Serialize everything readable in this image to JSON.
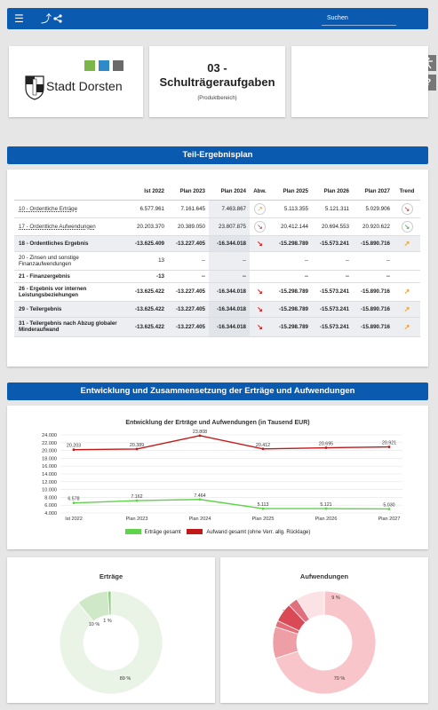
{
  "header": {
    "menu_icon": "hamburger-icon",
    "share_icons": [
      "export-icon",
      "share-icon"
    ],
    "search_placeholder": "Suchen"
  },
  "side_buttons": [
    "accessibility-icon",
    "help-icon"
  ],
  "help_label": "?",
  "logo": {
    "text": "Stadt Dorsten",
    "colors": [
      "#7ab648",
      "#2e8ac8",
      "#6a6a6a"
    ]
  },
  "product": {
    "number": "03 -",
    "title": "Schulträgeraufgaben",
    "subtitle": "(Produktbereich)"
  },
  "section1": {
    "title": "Teil-Ergebnisplan"
  },
  "table": {
    "headers": [
      "",
      "Ist 2022",
      "Plan 2023",
      "Plan 2024",
      "Abw.",
      "Plan 2025",
      "Plan 2026",
      "Plan 2027",
      "Trend"
    ],
    "rows": [
      {
        "label": "10 - Ordentliche Erträge",
        "link": true,
        "bold": false,
        "vals": [
          "6.577.961",
          "7.161.645",
          "7.463.867"
        ],
        "abw": "↗",
        "abw_color": "orange",
        "vals2": [
          "5.113.355",
          "5.121.311",
          "5.029.906"
        ],
        "trend": "↘",
        "trend_color": "red",
        "trend_circle": true
      },
      {
        "label": "17 - Ordentliche Aufwendungen",
        "link": true,
        "bold": false,
        "vals": [
          "20.203.370",
          "20.389.050",
          "23.807.875"
        ],
        "abw": "↘",
        "abw_color": "red",
        "vals2": [
          "20.412.144",
          "20.694.553",
          "20.920.622"
        ],
        "trend": "↘",
        "trend_color": "green",
        "trend_circle": true
      },
      {
        "label": "18 - Ordentliches Ergebnis",
        "link": false,
        "bold": true,
        "shade": true,
        "vals": [
          "-13.625.409",
          "-13.227.405",
          "-16.344.018"
        ],
        "abw": "↘",
        "abw_color": "red",
        "vals2": [
          "-15.298.789",
          "-15.573.241",
          "-15.890.716"
        ],
        "trend": "↗",
        "trend_color": "orange",
        "trend_circle": false
      },
      {
        "label": "20 - Zinsen und sonstige Finanzaufwendungen",
        "link": false,
        "bold": false,
        "vals": [
          "13",
          "--",
          "--"
        ],
        "abw": "",
        "abw_color": "",
        "vals2": [
          "--",
          "--",
          "--"
        ],
        "trend": "",
        "trend_color": "",
        "trend_circle": false
      },
      {
        "label": "21 - Finanzergebnis",
        "link": false,
        "bold": true,
        "vals": [
          "-13",
          "--",
          "--"
        ],
        "abw": "",
        "abw_color": "",
        "vals2": [
          "--",
          "--",
          "--"
        ],
        "trend": "",
        "trend_color": "",
        "trend_circle": false
      },
      {
        "label": "26 - Ergebnis vor internen Leistungsbeziehungen",
        "link": false,
        "bold": true,
        "vals": [
          "-13.625.422",
          "-13.227.405",
          "-16.344.018"
        ],
        "abw": "↘",
        "abw_color": "red",
        "vals2": [
          "-15.298.789",
          "-15.573.241",
          "-15.890.716"
        ],
        "trend": "↗",
        "trend_color": "orange",
        "trend_circle": false
      },
      {
        "label": "29 - Teilergebnis",
        "link": false,
        "bold": true,
        "shade": true,
        "vals": [
          "-13.625.422",
          "-13.227.405",
          "-16.344.018"
        ],
        "abw": "↘",
        "abw_color": "red",
        "vals2": [
          "-15.298.789",
          "-15.573.241",
          "-15.890.716"
        ],
        "trend": "↗",
        "trend_color": "orange",
        "trend_circle": false
      },
      {
        "label": "31 - Teilergebnis nach Abzug globaler Minderaufwand",
        "link": false,
        "bold": true,
        "shade": true,
        "vals": [
          "-13.625.422",
          "-13.227.405",
          "-16.344.018"
        ],
        "abw": "↘",
        "abw_color": "red",
        "vals2": [
          "-15.298.789",
          "-15.573.241",
          "-15.890.716"
        ],
        "trend": "↗",
        "trend_color": "orange",
        "trend_circle": false
      }
    ]
  },
  "section2": {
    "title": "Entwicklung und Zusammensetzung der Erträge und Aufwendungen"
  },
  "chart_data": [
    {
      "type": "line",
      "title": "Entwicklung der Erträge und Aufwendungen  (in Tausend EUR)",
      "categories": [
        "Ist 2022",
        "Plan 2023",
        "Plan 2024",
        "Plan 2025",
        "Plan 2026",
        "Plan 2027"
      ],
      "yticks": [
        "24.000",
        "22.000",
        "20.000",
        "18.000",
        "16.000",
        "14.000",
        "12.000",
        "10.000",
        "8.000",
        "6.000",
        "4.000"
      ],
      "ylim": [
        4000,
        24000
      ],
      "series": [
        {
          "name": "Erträge gesamt",
          "color": "#5fd34a",
          "values": [
            6578,
            7162,
            7464,
            5113,
            5121,
            5030
          ],
          "labels": [
            "6.578",
            "7.162",
            "7.464",
            "5.113",
            "5.121",
            "5.030"
          ]
        },
        {
          "name": "Aufwand gesamt (ohne Verr. allg. Rücklage)",
          "color": "#c21818",
          "values": [
            20203,
            20389,
            23808,
            20412,
            20695,
            20921
          ],
          "labels": [
            "20.203",
            "20.389",
            "23.808",
            "20.412",
            "20.695",
            "20.921"
          ]
        }
      ],
      "legend": "bottom",
      "grid": true
    },
    {
      "type": "pie",
      "title": "Erträge",
      "slices": [
        {
          "label": "89 %",
          "value": 89,
          "color": "#eaf4e6"
        },
        {
          "label": "10 %",
          "value": 10,
          "color": "#cfe8c7"
        },
        {
          "label": "1 %",
          "value": 1,
          "color": "#8fcf7e"
        }
      ]
    },
    {
      "type": "pie",
      "title": "Aufwendungen",
      "slices": [
        {
          "label": "70 %",
          "value": 70,
          "color": "#f8c6ca"
        },
        {
          "label": "10 %",
          "value": 10,
          "color": "#ee9ea5"
        },
        {
          "label": "2 %",
          "value": 2,
          "color": "#e36d79"
        },
        {
          "label": "6 %",
          "value": 6,
          "color": "#d94a56"
        },
        {
          "label": "3 %",
          "value": 3,
          "color": "#e0707b"
        },
        {
          "label": "9 %",
          "value": 9,
          "color": "#fbe3e5"
        }
      ]
    }
  ]
}
